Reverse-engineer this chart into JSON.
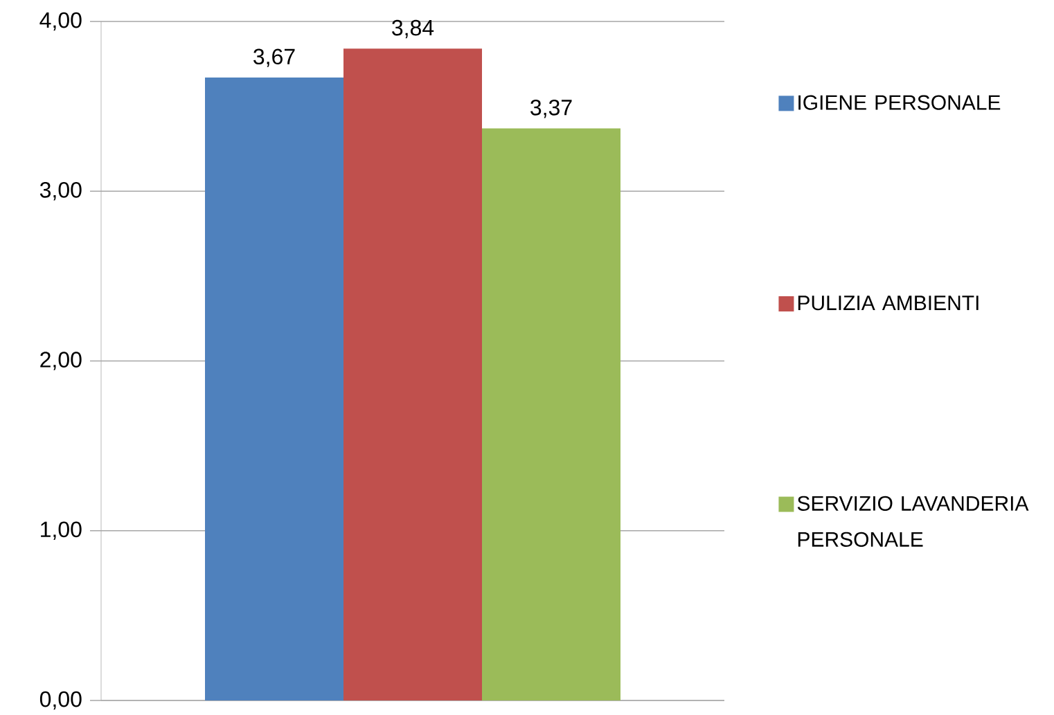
{
  "chart_data": {
    "type": "bar",
    "categories": [
      null
    ],
    "series": [
      {
        "name": "IGIENE PERSONALE",
        "color": "#4f81bd",
        "values": [
          3.67
        ],
        "value_labels": [
          "3,67"
        ]
      },
      {
        "name": "PULIZIA AMBIENTI",
        "color": "#c0504d",
        "values": [
          3.84
        ],
        "value_labels": [
          "3,84"
        ]
      },
      {
        "name": "SERVIZIO LAVANDERIA PERSONALE",
        "color": "#9bbb59",
        "values": [
          3.37
        ],
        "value_labels": [
          "3,37"
        ]
      }
    ],
    "ylim": [
      0,
      4
    ],
    "yticks": [
      {
        "value": 0,
        "label": "0,00"
      },
      {
        "value": 1,
        "label": "1,00"
      },
      {
        "value": 2,
        "label": "2,00"
      },
      {
        "value": 3,
        "label": "3,00"
      },
      {
        "value": 4,
        "label": "4,00"
      }
    ],
    "grid": "y",
    "legend": "right",
    "tick_labels": "y"
  }
}
